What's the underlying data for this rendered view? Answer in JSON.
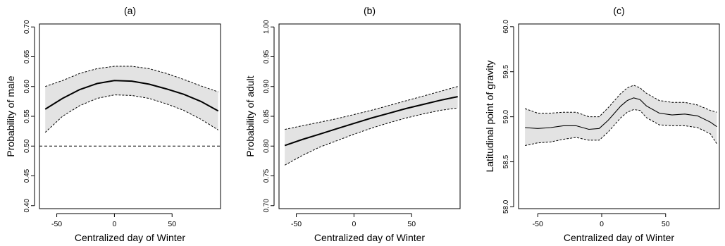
{
  "chart_data": [
    {
      "type": "line",
      "title": "(a)",
      "xlabel": "Centralized day of Winter",
      "ylabel": "Probability of male",
      "xlim": [
        -65,
        92
      ],
      "ylim": [
        0.395,
        0.705
      ],
      "xticks": [
        -50,
        0,
        50
      ],
      "yticks": [
        0.4,
        0.45,
        0.5,
        0.55,
        0.6,
        0.65,
        0.7
      ],
      "ytick_labels": [
        "0.40",
        "0.45",
        "0.50",
        "0.55",
        "0.60",
        "0.65",
        "0.70"
      ],
      "reference_line": {
        "y": 0.5,
        "style": "dashed"
      },
      "grid": false,
      "series": [
        {
          "x": [
            -60,
            -45,
            -30,
            -15,
            0,
            15,
            30,
            45,
            60,
            75,
            90
          ],
          "y": [
            0.562,
            0.58,
            0.595,
            0.605,
            0.61,
            0.609,
            0.604,
            0.596,
            0.587,
            0.575,
            0.559
          ],
          "lower": [
            0.523,
            0.55,
            0.568,
            0.58,
            0.586,
            0.585,
            0.58,
            0.571,
            0.56,
            0.545,
            0.527
          ],
          "upper": [
            0.6,
            0.61,
            0.622,
            0.63,
            0.634,
            0.634,
            0.63,
            0.622,
            0.612,
            0.601,
            0.591
          ]
        }
      ]
    },
    {
      "type": "line",
      "title": "(b)",
      "xlabel": "Centralized day of Winter",
      "ylabel": "Probability of adult",
      "xlim": [
        -65,
        92
      ],
      "ylim": [
        0.695,
        1.005
      ],
      "xticks": [
        -50,
        0,
        50
      ],
      "yticks": [
        0.7,
        0.75,
        0.8,
        0.85,
        0.9,
        0.95,
        1.0
      ],
      "ytick_labels": [
        "0.70",
        "0.75",
        "0.80",
        "0.85",
        "0.90",
        "0.95",
        "1.00"
      ],
      "grid": false,
      "series": [
        {
          "x": [
            -60,
            -45,
            -30,
            -15,
            0,
            15,
            30,
            45,
            60,
            75,
            90
          ],
          "y": [
            0.801,
            0.811,
            0.82,
            0.829,
            0.838,
            0.847,
            0.855,
            0.863,
            0.87,
            0.877,
            0.883
          ],
          "lower": [
            0.768,
            0.784,
            0.798,
            0.809,
            0.82,
            0.83,
            0.839,
            0.847,
            0.854,
            0.86,
            0.864
          ],
          "upper": [
            0.828,
            0.834,
            0.84,
            0.846,
            0.853,
            0.86,
            0.868,
            0.876,
            0.884,
            0.892,
            0.9
          ]
        }
      ]
    },
    {
      "type": "line",
      "title": "(c)",
      "xlabel": "Centralized day of Winter",
      "ylabel": "Latitudinal point of gravity",
      "xlim": [
        -65,
        92
      ],
      "ylim": [
        57.98,
        60.03
      ],
      "xticks": [
        -50,
        0,
        50
      ],
      "yticks": [
        58.0,
        58.5,
        59.0,
        59.5,
        60.0
      ],
      "ytick_labels": [
        "58.0",
        "58.5",
        "59.0",
        "59.5",
        "60.0"
      ],
      "grid": false,
      "series": [
        {
          "x": [
            -60,
            -50,
            -40,
            -30,
            -20,
            -10,
            -2,
            5,
            15,
            20,
            25,
            30,
            35,
            45,
            55,
            65,
            75,
            85,
            90
          ],
          "y": [
            58.88,
            58.87,
            58.88,
            58.9,
            58.9,
            58.86,
            58.87,
            58.96,
            59.12,
            59.18,
            59.21,
            59.19,
            59.12,
            59.04,
            59.02,
            59.03,
            59.01,
            58.94,
            58.89
          ],
          "lower": [
            58.68,
            58.71,
            58.72,
            58.75,
            58.77,
            58.74,
            58.74,
            58.83,
            58.99,
            59.05,
            59.08,
            59.07,
            58.99,
            58.91,
            58.9,
            58.9,
            58.88,
            58.81,
            58.7
          ],
          "upper": [
            59.09,
            59.04,
            59.04,
            59.05,
            59.05,
            59.0,
            59.0,
            59.1,
            59.26,
            59.32,
            59.35,
            59.32,
            59.26,
            59.18,
            59.16,
            59.16,
            59.13,
            59.07,
            59.05
          ]
        }
      ]
    }
  ]
}
